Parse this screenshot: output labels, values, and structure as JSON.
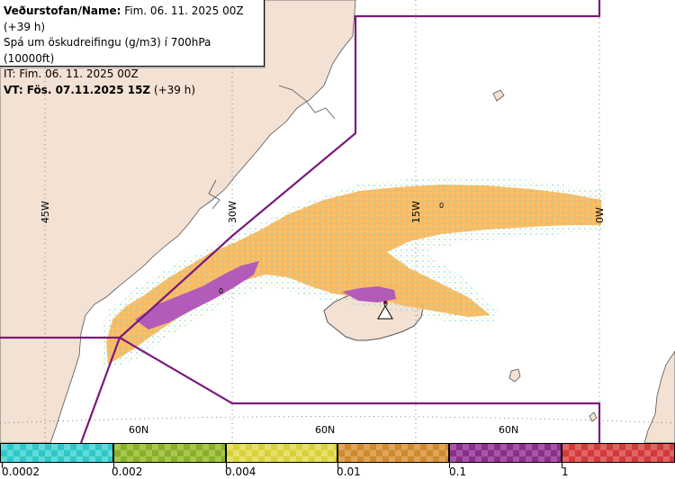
{
  "info": {
    "line1_label": "Veðurstofan/Name:",
    "line1_value": " Fim. 06. 11. 2025 00Z (+39 h)",
    "line2": "Spá um öskudreifingu (g/m3) í 700hPa (10000ft)",
    "line3": "IT: Fim. 06. 11. 2025 00Z",
    "line4_label": "VT: Fös. 07.11.2025 15Z",
    "line4_value": " (+39 h)"
  },
  "map_labels": {
    "lon_45w": "45W",
    "lon_30w": "30W",
    "lon_15w": "15W",
    "lon_0w": "0W",
    "lat_a": "60N",
    "lat_b": "60N",
    "lat_c": "60N",
    "contour_a": "0",
    "contour_b": "0",
    "contour_c": "0"
  },
  "legend": {
    "ticks": [
      "0.0002",
      "0.002",
      "0.004",
      "0.01",
      "0.1",
      "1"
    ],
    "colors": [
      "#2ec8c8",
      "#8ab02a",
      "#d8d23a",
      "#cf8a2e",
      "#8a2f8a",
      "#d23a3a"
    ]
  },
  "colors": {
    "land": "#f3e1d3",
    "plume_low": "#fbb75a",
    "plume_high": "#b35bb8",
    "boundary": "#7a1a7a"
  }
}
